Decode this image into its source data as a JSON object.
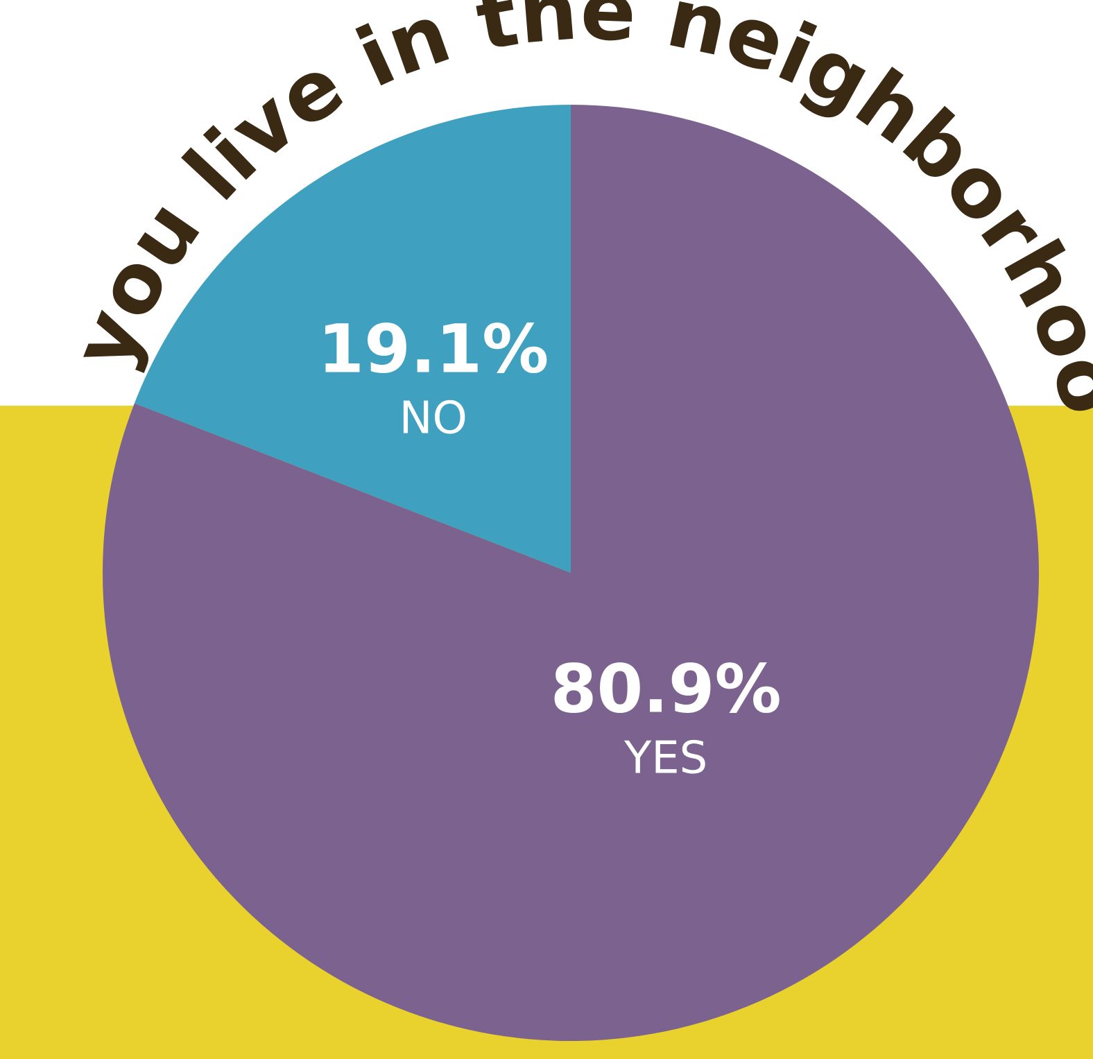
{
  "colors": {
    "background_top": "#ffffff",
    "background_bottom": "#e9d22e",
    "title": "#3a2a14",
    "label_text": "#ffffff"
  },
  "chart_data": {
    "type": "pie",
    "title": "Do you live in the neighborhood?",
    "slices": [
      {
        "label": "YES",
        "value": 80.9,
        "value_label": "80.9%",
        "color": "#7b628f"
      },
      {
        "label": "NO",
        "value": 19.1,
        "value_label": "19.1%",
        "color": "#40a0c0"
      }
    ],
    "start": "12 o'clock",
    "direction": "clockwise",
    "legend": "none"
  }
}
